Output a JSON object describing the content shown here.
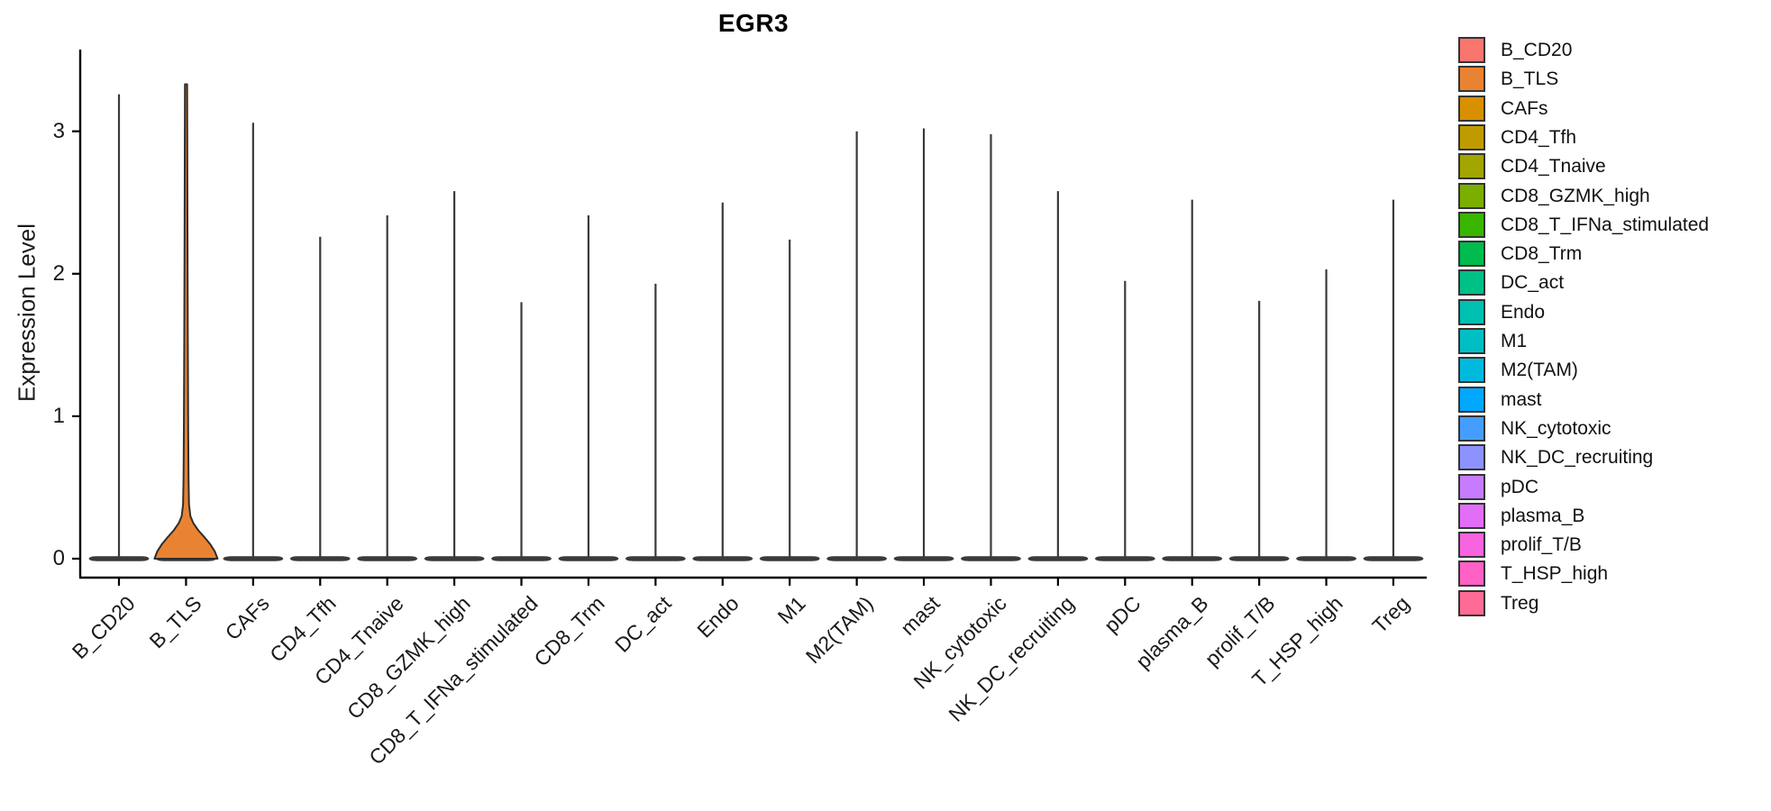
{
  "figure": {
    "title": "EGR3",
    "background": "#FFFFFF"
  },
  "chart_data": {
    "type": "violin",
    "title": "EGR3",
    "xlabel": "",
    "ylabel": "Expression Level",
    "ylim": [
      0,
      3.56
    ],
    "yticks": [
      "0",
      "1",
      "2",
      "3"
    ],
    "ytick_values": [
      0,
      1,
      2,
      3
    ],
    "x_tick_rotation_deg": 45,
    "grid": false,
    "legend_position": "right",
    "categories": [
      "B_CD20",
      "B_TLS",
      "CAFs",
      "CD4_Tfh",
      "CD4_Tnaive",
      "CD8_GZMK_high",
      "CD8_T_IFNa_stimulated",
      "CD8_Trm",
      "DC_act",
      "Endo",
      "M1",
      "M2(TAM)",
      "mast",
      "NK_cytotoxic",
      "NK_DC_recruiting",
      "pDC",
      "plasma_B",
      "prolif_T/B",
      "T_HSP_high",
      "Treg"
    ],
    "colors": [
      "#F8766D",
      "#EA8331",
      "#D89000",
      "#C09B00",
      "#A3A500",
      "#7CAE00",
      "#39B600",
      "#00BB4E",
      "#00C087",
      "#00C0B2",
      "#00BFC4",
      "#00BADE",
      "#00A9FF",
      "#459EFF",
      "#8E92FF",
      "#C77CFF",
      "#E26EF7",
      "#F863DF",
      "#FF61C5",
      "#FF6B94"
    ],
    "series": [
      {
        "name": "violin_max_expression",
        "values": [
          3.26,
          3.33,
          3.06,
          2.26,
          2.41,
          2.58,
          1.8,
          2.41,
          1.93,
          2.5,
          2.24,
          3.0,
          3.02,
          2.98,
          2.58,
          1.95,
          2.52,
          1.81,
          2.03,
          2.52
        ]
      },
      {
        "name": "violin_density_bulge_peak_expression",
        "values": [
          0,
          0.3,
          0,
          0,
          0,
          0,
          0,
          0,
          0,
          0,
          0,
          0,
          0,
          0,
          0,
          0,
          0,
          0,
          0,
          0
        ]
      }
    ],
    "annotation": "Expression concentrated at 0 for all cell types (flat violins with thin spikes to max); only B_TLS shows a visible orange density bulge near 0."
  },
  "legend": {
    "entries": [
      {
        "label": "B_CD20",
        "color": "#F8766D"
      },
      {
        "label": "B_TLS",
        "color": "#EA8331"
      },
      {
        "label": "CAFs",
        "color": "#D89000"
      },
      {
        "label": "CD4_Tfh",
        "color": "#C09B00"
      },
      {
        "label": "CD4_Tnaive",
        "color": "#A3A500"
      },
      {
        "label": "CD8_GZMK_high",
        "color": "#7CAE00"
      },
      {
        "label": "CD8_T_IFNa_stimulated",
        "color": "#39B600"
      },
      {
        "label": "CD8_Trm",
        "color": "#00BB4E"
      },
      {
        "label": "DC_act",
        "color": "#00C087"
      },
      {
        "label": "Endo",
        "color": "#00C0B2"
      },
      {
        "label": "M1",
        "color": "#00BFC4"
      },
      {
        "label": "M2(TAM)",
        "color": "#00BADE"
      },
      {
        "label": "mast",
        "color": "#00A9FF"
      },
      {
        "label": "NK_cytotoxic",
        "color": "#459EFF"
      },
      {
        "label": "NK_DC_recruiting",
        "color": "#8E92FF"
      },
      {
        "label": "pDC",
        "color": "#C77CFF"
      },
      {
        "label": "plasma_B",
        "color": "#E26EF7"
      },
      {
        "label": "prolif_T/B",
        "color": "#F863DF"
      },
      {
        "label": "T_HSP_high",
        "color": "#FF61C5"
      },
      {
        "label": "Treg",
        "color": "#FF6B94"
      }
    ]
  }
}
